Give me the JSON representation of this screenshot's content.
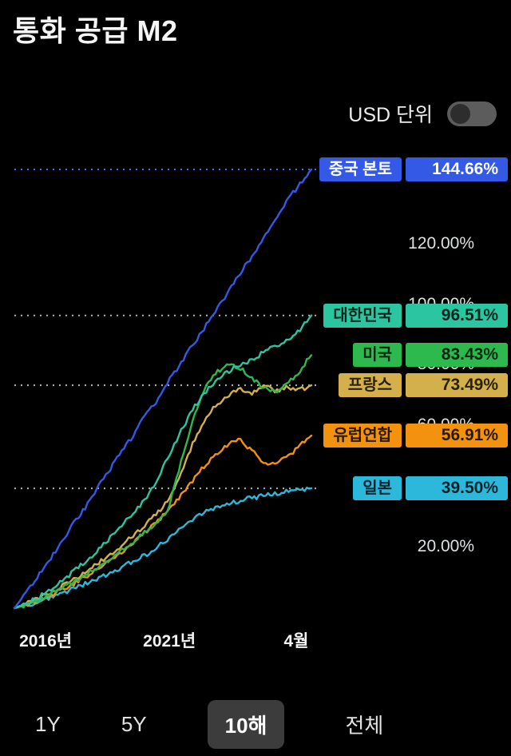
{
  "header": {
    "title": "통화 공급 M2",
    "usd_toggle": {
      "label": "USD 단위",
      "state": "off"
    }
  },
  "chart_data": {
    "type": "line",
    "title": "통화 공급 M2",
    "ylabel": "%",
    "ylim": [
      0,
      144.66
    ],
    "grid": "dotted horizontal at series end values",
    "legend_position": "right badges at line ends",
    "y_axis_labels": [
      {
        "text": "120.00%",
        "value": 120
      },
      {
        "text": "100.00%",
        "value": 100
      },
      {
        "text": "80.00%",
        "value": 80
      },
      {
        "text": "60.00%",
        "value": 60
      },
      {
        "text": "20.00%",
        "value": 20
      }
    ],
    "x_axis_labels": [
      {
        "text": "2016년",
        "t": 0.105
      },
      {
        "text": "2021년",
        "t": 0.522
      },
      {
        "text": "4월",
        "t": 0.949
      }
    ],
    "gridlines": [
      {
        "value": 144.66,
        "color": "#4a67f0"
      },
      {
        "value": 96.51,
        "color": "#aab4ba"
      },
      {
        "value": 73.49,
        "color": "#aab4ba"
      },
      {
        "value": 39.5,
        "color": "#aab4ba"
      }
    ],
    "series": [
      {
        "label": "중국 본토",
        "display": "144.66%",
        "value": 144.66,
        "color": "#3459e6",
        "text_color": "#ffffff",
        "points": [
          0,
          5.2,
          10.5,
          16.3,
          21.8,
          28.4,
          33.2,
          39.6,
          45.5,
          51.8,
          56.9,
          63.4,
          68.2,
          75.1,
          80.6,
          86.8,
          92.3,
          98.7,
          104.2,
          110.4,
          115.8,
          122.6,
          128.3,
          134.5,
          139.8,
          144.66
        ]
      },
      {
        "label": "대한민국",
        "display": "96.51%",
        "value": 96.51,
        "color": "#2cc5a2",
        "text_color": "#07261c",
        "points": [
          0,
          1.5,
          3.5,
          6.1,
          8.9,
          12.2,
          15.5,
          19.0,
          23.1,
          27.5,
          31.2,
          36.0,
          42.0,
          50.2,
          58.1,
          65.5,
          71.0,
          75.2,
          78.0,
          80.2,
          82.1,
          84.3,
          86.5,
          88.8,
          91.5,
          96.51
        ]
      },
      {
        "label": "미국",
        "display": "83.43%",
        "value": 83.43,
        "color": "#2eb94f",
        "text_color": "#07260f",
        "points": [
          0,
          1.2,
          2.8,
          4.5,
          6.5,
          8.8,
          11.0,
          13.5,
          16.0,
          19.1,
          22.0,
          25.2,
          28.1,
          33.0,
          48.0,
          62.0,
          72.0,
          78.0,
          80.2,
          79.0,
          76.0,
          72.5,
          71.0,
          74.0,
          78.2,
          83.43
        ]
      },
      {
        "label": "프랑스",
        "display": "73.49%",
        "value": 73.49,
        "color": "#d3b04c",
        "text_color": "#2a2208",
        "points": [
          0,
          1.5,
          3.2,
          5.0,
          7.1,
          9.5,
          12.0,
          14.6,
          17.5,
          20.5,
          24.0,
          27.5,
          31.0,
          36.2,
          44.0,
          54.0,
          62.0,
          67.0,
          70.1,
          72.0,
          71.0,
          73.2,
          71.5,
          73.0,
          72.0,
          73.49
        ]
      },
      {
        "label": "유럽연합",
        "display": "56.91%",
        "value": 56.91,
        "color": "#f2920f",
        "text_color": "#2a1a05",
        "points": [
          0,
          1.2,
          2.5,
          4.0,
          6.0,
          8.1,
          10.5,
          13.0,
          15.5,
          18.5,
          21.5,
          25.0,
          28.5,
          32.5,
          37.0,
          42.0,
          47.0,
          51.0,
          54.0,
          55.5,
          52.0,
          48.0,
          47.5,
          50.0,
          53.5,
          56.91
        ]
      },
      {
        "label": "일본",
        "display": "39.50%",
        "value": 39.5,
        "color": "#2cb8da",
        "text_color": "#06232b",
        "points": [
          0,
          1.0,
          2.2,
          3.5,
          5.0,
          6.5,
          8.0,
          9.8,
          11.5,
          13.5,
          15.5,
          17.5,
          20.0,
          23.0,
          26.5,
          29.5,
          31.5,
          33.0,
          34.5,
          35.5,
          36.3,
          37.0,
          37.8,
          38.4,
          39.0,
          39.5
        ]
      }
    ]
  },
  "range_buttons": [
    {
      "label": "1Y",
      "selected": false
    },
    {
      "label": "5Y",
      "selected": false
    },
    {
      "label": "10해",
      "selected": true
    },
    {
      "label": "전체",
      "selected": false
    }
  ]
}
